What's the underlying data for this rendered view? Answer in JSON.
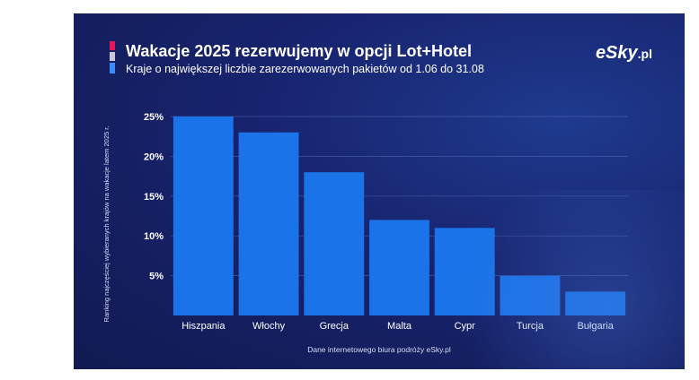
{
  "header": {
    "title": "Wakacje 2025 rezerwujemy w opcji Lot+Hotel",
    "subtitle": "Kraje o największej liczbie zarezerwowanych pakietów od 1.06 do 31.08"
  },
  "logo": {
    "text": "eSky",
    "suffix": ".pl"
  },
  "source_note": "Dane internetowego biura podróży eSky.pl",
  "colors": {
    "background": "#17236d",
    "bar": "#1a73e8",
    "accent_pink": "#e8175d",
    "accent_grey": "#c9c9d6",
    "accent_blue": "#3b8cff"
  },
  "chart_data": {
    "type": "bar",
    "title": "Wakacje 2025 rezerwujemy w opcji Lot+Hotel",
    "subtitle": "Kraje o największej liczbie zarezerwowanych pakietów od 1.06 do 31.08",
    "ylabel": "Ranking najczęściej wybieranych krajów na wakacje latem 2025 r.",
    "xlabel": "",
    "categories": [
      "Hiszpania",
      "Włochy",
      "Grecja",
      "Malta",
      "Cypr",
      "Turcja",
      "Bułgaria"
    ],
    "values": [
      25,
      23,
      18,
      12,
      11,
      5,
      3
    ],
    "unit": "%",
    "ylim": [
      0,
      25
    ],
    "yticks": [
      "5%",
      "10%",
      "15%",
      "20%",
      "25%"
    ],
    "ytick_values": [
      5,
      10,
      15,
      20,
      25
    ],
    "grid": true,
    "legend": "none"
  }
}
